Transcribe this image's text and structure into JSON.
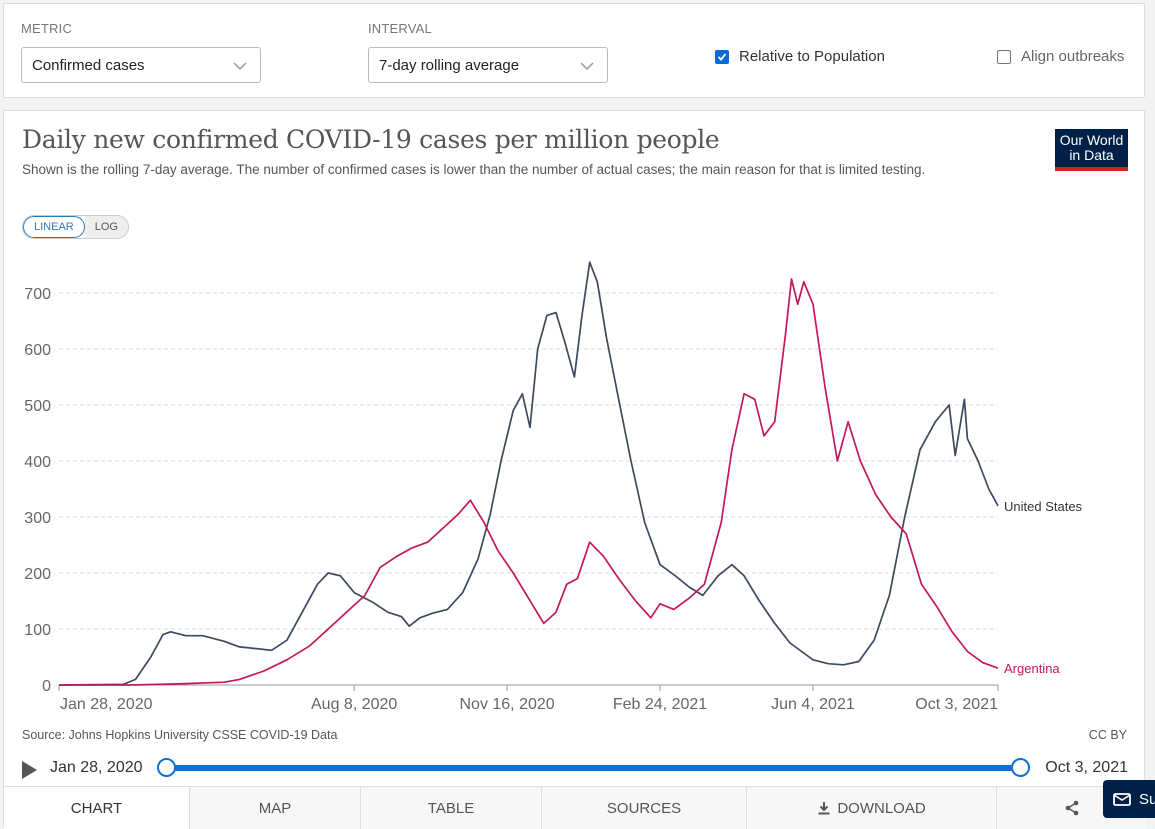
{
  "controls": {
    "metric_label": "METRIC",
    "metric_value": "Confirmed cases",
    "interval_label": "INTERVAL",
    "interval_value": "7-day rolling average",
    "relative_label": "Relative to Population",
    "relative_checked": true,
    "align_label": "Align outbreaks",
    "align_checked": false
  },
  "header": {
    "title": "Daily new confirmed COVID-19 cases per million people",
    "subtitle": "Shown is the rolling 7-day average. The number of confirmed cases is lower than the number of actual cases; the main reason for that is limited testing.",
    "logo_line1": "Our World",
    "logo_line2": "in Data"
  },
  "scale": {
    "linear": "LINEAR",
    "log": "LOG",
    "active": "linear"
  },
  "footer": {
    "source": "Source: Johns Hopkins University CSSE COVID-19 Data",
    "license": "CC BY"
  },
  "timeline": {
    "start": "Jan 28, 2020",
    "end": "Oct 3, 2021"
  },
  "tabs": [
    "CHART",
    "MAP",
    "TABLE",
    "SOURCES",
    "DOWNLOAD",
    ""
  ],
  "floating_label": "Su",
  "chart_data": {
    "type": "line",
    "ylim": [
      0,
      750
    ],
    "yticks": [
      0,
      100,
      200,
      300,
      400,
      500,
      600,
      700
    ],
    "xlim": [
      "2020-01-28",
      "2021-10-03"
    ],
    "xticks": [
      "Jan 28, 2020",
      "Aug 8, 2020",
      "Nov 16, 2020",
      "Feb 24, 2021",
      "Jun 4, 2021",
      "Oct 3, 2021"
    ],
    "xtick_dates": [
      "2020-01-28",
      "2020-08-08",
      "2020-11-16",
      "2021-02-24",
      "2021-06-04",
      "2021-10-03"
    ],
    "grid": true,
    "series": [
      {
        "name": "United States",
        "color": "#3c4a5f",
        "points": [
          [
            "2020-01-28",
            0
          ],
          [
            "2020-03-10",
            1
          ],
          [
            "2020-03-18",
            10
          ],
          [
            "2020-03-28",
            50
          ],
          [
            "2020-04-05",
            90
          ],
          [
            "2020-04-10",
            95
          ],
          [
            "2020-04-20",
            88
          ],
          [
            "2020-05-01",
            88
          ],
          [
            "2020-05-15",
            78
          ],
          [
            "2020-05-25",
            68
          ],
          [
            "2020-06-05",
            65
          ],
          [
            "2020-06-15",
            62
          ],
          [
            "2020-06-25",
            80
          ],
          [
            "2020-07-05",
            130
          ],
          [
            "2020-07-15",
            180
          ],
          [
            "2020-07-22",
            200
          ],
          [
            "2020-07-30",
            195
          ],
          [
            "2020-08-08",
            165
          ],
          [
            "2020-08-20",
            148
          ],
          [
            "2020-08-30",
            130
          ],
          [
            "2020-09-08",
            122
          ],
          [
            "2020-09-13",
            105
          ],
          [
            "2020-09-20",
            120
          ],
          [
            "2020-09-28",
            128
          ],
          [
            "2020-10-08",
            135
          ],
          [
            "2020-10-18",
            165
          ],
          [
            "2020-10-28",
            225
          ],
          [
            "2020-11-05",
            305
          ],
          [
            "2020-11-12",
            400
          ],
          [
            "2020-11-20",
            490
          ],
          [
            "2020-11-26",
            520
          ],
          [
            "2020-12-01",
            460
          ],
          [
            "2020-12-06",
            600
          ],
          [
            "2020-12-12",
            660
          ],
          [
            "2020-12-18",
            665
          ],
          [
            "2020-12-24",
            610
          ],
          [
            "2020-12-30",
            550
          ],
          [
            "2021-01-04",
            660
          ],
          [
            "2021-01-09",
            755
          ],
          [
            "2021-01-14",
            720
          ],
          [
            "2021-01-20",
            620
          ],
          [
            "2021-01-28",
            510
          ],
          [
            "2021-02-05",
            400
          ],
          [
            "2021-02-14",
            290
          ],
          [
            "2021-02-24",
            215
          ],
          [
            "2021-03-06",
            195
          ],
          [
            "2021-03-15",
            175
          ],
          [
            "2021-03-24",
            160
          ],
          [
            "2021-04-03",
            195
          ],
          [
            "2021-04-12",
            215
          ],
          [
            "2021-04-20",
            195
          ],
          [
            "2021-04-30",
            150
          ],
          [
            "2021-05-10",
            110
          ],
          [
            "2021-05-20",
            75
          ],
          [
            "2021-06-04",
            45
          ],
          [
            "2021-06-14",
            38
          ],
          [
            "2021-06-24",
            36
          ],
          [
            "2021-07-04",
            42
          ],
          [
            "2021-07-14",
            80
          ],
          [
            "2021-07-24",
            160
          ],
          [
            "2021-08-03",
            300
          ],
          [
            "2021-08-13",
            420
          ],
          [
            "2021-08-23",
            470
          ],
          [
            "2021-09-01",
            500
          ],
          [
            "2021-09-05",
            410
          ],
          [
            "2021-09-08",
            460
          ],
          [
            "2021-09-11",
            510
          ],
          [
            "2021-09-13",
            440
          ],
          [
            "2021-09-20",
            400
          ],
          [
            "2021-09-27",
            350
          ],
          [
            "2021-10-03",
            320
          ]
        ]
      },
      {
        "name": "Argentina",
        "color": "#c2185b",
        "points": [
          [
            "2020-01-28",
            0
          ],
          [
            "2020-03-15",
            0
          ],
          [
            "2020-04-15",
            2
          ],
          [
            "2020-05-15",
            5
          ],
          [
            "2020-05-25",
            10
          ],
          [
            "2020-06-10",
            25
          ],
          [
            "2020-06-25",
            45
          ],
          [
            "2020-07-10",
            70
          ],
          [
            "2020-07-22",
            100
          ],
          [
            "2020-08-05",
            135
          ],
          [
            "2020-08-15",
            160
          ],
          [
            "2020-08-25",
            210
          ],
          [
            "2020-09-05",
            230
          ],
          [
            "2020-09-15",
            245
          ],
          [
            "2020-09-25",
            255
          ],
          [
            "2020-10-05",
            280
          ],
          [
            "2020-10-15",
            305
          ],
          [
            "2020-10-23",
            330
          ],
          [
            "2020-11-01",
            290
          ],
          [
            "2020-11-10",
            240
          ],
          [
            "2020-11-20",
            200
          ],
          [
            "2020-11-30",
            155
          ],
          [
            "2020-12-10",
            110
          ],
          [
            "2020-12-18",
            130
          ],
          [
            "2020-12-25",
            180
          ],
          [
            "2021-01-01",
            190
          ],
          [
            "2021-01-09",
            255
          ],
          [
            "2021-01-18",
            230
          ],
          [
            "2021-01-28",
            190
          ],
          [
            "2021-02-08",
            150
          ],
          [
            "2021-02-18",
            120
          ],
          [
            "2021-02-24",
            145
          ],
          [
            "2021-03-05",
            135
          ],
          [
            "2021-03-15",
            155
          ],
          [
            "2021-03-25",
            180
          ],
          [
            "2021-04-05",
            290
          ],
          [
            "2021-04-12",
            420
          ],
          [
            "2021-04-20",
            520
          ],
          [
            "2021-04-27",
            510
          ],
          [
            "2021-05-03",
            445
          ],
          [
            "2021-05-10",
            470
          ],
          [
            "2021-05-17",
            625
          ],
          [
            "2021-05-21",
            725
          ],
          [
            "2021-05-25",
            680
          ],
          [
            "2021-05-29",
            720
          ],
          [
            "2021-06-04",
            680
          ],
          [
            "2021-06-12",
            530
          ],
          [
            "2021-06-20",
            400
          ],
          [
            "2021-06-27",
            470
          ],
          [
            "2021-07-05",
            400
          ],
          [
            "2021-07-15",
            340
          ],
          [
            "2021-07-25",
            300
          ],
          [
            "2021-08-04",
            270
          ],
          [
            "2021-08-14",
            180
          ],
          [
            "2021-08-24",
            140
          ],
          [
            "2021-09-03",
            95
          ],
          [
            "2021-09-13",
            60
          ],
          [
            "2021-09-23",
            40
          ],
          [
            "2021-10-03",
            30
          ]
        ]
      }
    ]
  }
}
